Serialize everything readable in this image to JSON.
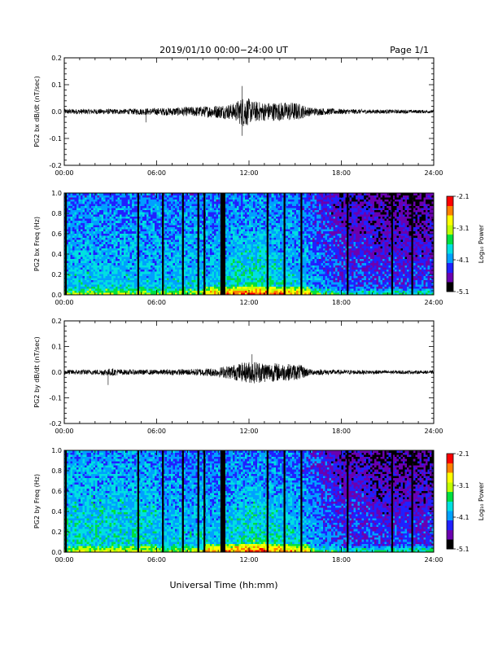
{
  "header": {
    "title": "2019/01/10  00:00−24:00 UT",
    "page": "Page 1/1"
  },
  "footer": {
    "xlabel": "Universal Time (hh:mm)"
  },
  "colorbar": {
    "label": "Log₁₀ Power",
    "ticks": [
      "-2.1",
      "-3.1",
      "-4.1",
      "-5.1"
    ],
    "range": [
      -5.1,
      -2.1
    ],
    "colors": [
      "#000000",
      "#6a00b0",
      "#2020ff",
      "#00a0ff",
      "#00e0e0",
      "#00e040",
      "#c0ff00",
      "#ffff00",
      "#ff8000",
      "#ff0000"
    ]
  },
  "chart_data": [
    {
      "type": "line",
      "ylabel": "PG2 bx dB/dt (nT/sec)",
      "xlim": [
        0,
        24
      ],
      "ylim": [
        -0.2,
        0.2
      ],
      "x_ticks": [
        "00:00",
        "06:00",
        "12:00",
        "18:00",
        "24:00"
      ],
      "y_ticks": [
        "0.2",
        "0.1",
        "0.0",
        "-0.1",
        "-0.2"
      ],
      "noise_envelope": [
        [
          0,
          0.01
        ],
        [
          4,
          0.01
        ],
        [
          5,
          0.012
        ],
        [
          7,
          0.015
        ],
        [
          9,
          0.02
        ],
        [
          11,
          0.03
        ],
        [
          11.7,
          0.06
        ],
        [
          12.2,
          0.04
        ],
        [
          13,
          0.035
        ],
        [
          15,
          0.035
        ],
        [
          16,
          0.015
        ],
        [
          18,
          0.01
        ],
        [
          20,
          0.008
        ],
        [
          24,
          0.006
        ]
      ],
      "spikes": [
        {
          "x": 11.55,
          "y": 0.095
        },
        {
          "x": 11.55,
          "y": -0.09
        },
        {
          "x": 5.3,
          "y": -0.04
        }
      ]
    },
    {
      "type": "heatmap",
      "ylabel": "PG2 bx Freq (Hz)",
      "xlim": [
        0,
        24
      ],
      "ylim": [
        0.0,
        1.0
      ],
      "x_ticks": [
        "00:00",
        "06:00",
        "12:00",
        "18:00",
        "24:00"
      ],
      "y_ticks": [
        "1.0",
        "0.8",
        "0.6",
        "0.4",
        "0.2",
        "0.0"
      ],
      "gaps_hours": [
        0.1,
        4.8,
        6.4,
        7.7,
        8.7,
        9.1,
        10.2,
        10.3,
        10.4,
        13.2,
        14.3,
        15.4,
        18.4,
        21.3,
        22.6
      ]
    },
    {
      "type": "line",
      "ylabel": "PG2 by dB/dt (nT/sec)",
      "xlim": [
        0,
        24
      ],
      "ylim": [
        -0.2,
        0.2
      ],
      "x_ticks": [
        "00:00",
        "06:00",
        "12:00",
        "18:00",
        "24:00"
      ],
      "y_ticks": [
        "0.2",
        "0.1",
        "0.0",
        "-0.1",
        "-0.2"
      ],
      "noise_envelope": [
        [
          0,
          0.01
        ],
        [
          2,
          0.01
        ],
        [
          3,
          0.015
        ],
        [
          4,
          0.01
        ],
        [
          6,
          0.01
        ],
        [
          8,
          0.012
        ],
        [
          10,
          0.018
        ],
        [
          11,
          0.03
        ],
        [
          12.2,
          0.045
        ],
        [
          13,
          0.04
        ],
        [
          14,
          0.035
        ],
        [
          15.3,
          0.03
        ],
        [
          16,
          0.012
        ],
        [
          18,
          0.009
        ],
        [
          24,
          0.006
        ]
      ],
      "spikes": [
        {
          "x": 2.85,
          "y": -0.05
        },
        {
          "x": 12.2,
          "y": 0.07
        }
      ]
    },
    {
      "type": "heatmap",
      "ylabel": "PG2 by Freq (Hz)",
      "xlim": [
        0,
        24
      ],
      "ylim": [
        0.0,
        1.0
      ],
      "x_ticks": [
        "00:00",
        "06:00",
        "12:00",
        "18:00",
        "24:00"
      ],
      "y_ticks": [
        "1.0",
        "0.8",
        "0.6",
        "0.4",
        "0.2",
        "0.0"
      ],
      "gaps_hours": [
        0.1,
        4.8,
        6.4,
        7.7,
        8.7,
        9.1,
        10.2,
        10.3,
        10.4,
        13.2,
        14.3,
        15.4,
        18.4,
        21.3,
        22.6
      ]
    }
  ]
}
